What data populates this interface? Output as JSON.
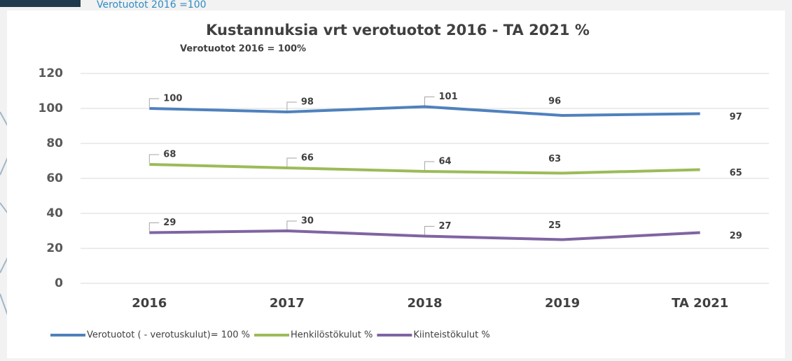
{
  "slide_note": "Verotuotot 2016 =100",
  "chart_data": {
    "type": "line",
    "title": "Kustannuksia vrt verotuotot  2016 - TA 2021 %",
    "subtitle": "Verotuotot 2016  = 100%",
    "categories": [
      "2016",
      "2017",
      "2018",
      "2019",
      "TA 2021"
    ],
    "series": [
      {
        "name": "Verotuotot  ( - verotuskulut)= 100 %",
        "color": "#4f81bd",
        "values": [
          100,
          98,
          101,
          96,
          97
        ]
      },
      {
        "name": "Henkilöstökulut %",
        "color": "#9bbb59",
        "values": [
          68,
          66,
          64,
          63,
          65
        ]
      },
      {
        "name": "Kiinteistökulut %",
        "color": "#8064a2",
        "values": [
          29,
          30,
          27,
          25,
          29
        ]
      }
    ],
    "ylim": [
      0,
      120
    ],
    "yticks": [
      0,
      20,
      40,
      60,
      80,
      100,
      120
    ],
    "grid": true,
    "legend": "bottom"
  }
}
